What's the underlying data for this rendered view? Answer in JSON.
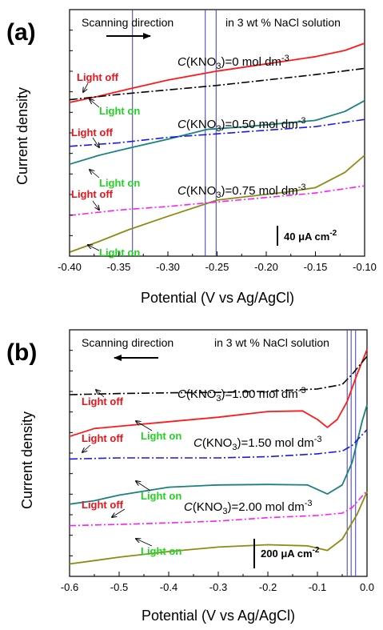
{
  "panels": [
    {
      "label": "(a)",
      "direction_text": "Scanning direction",
      "solution_text": "in 3 wt % NaCl solution",
      "arrow": "right",
      "xlabel": "Potential (V vs Ag/AgCl)",
      "ylabel": "Current density",
      "scale_bar": {
        "prefix": "40 ",
        "unit": "μA cm",
        "exp": "-2"
      },
      "x_ticks": [
        "-0.40",
        "-0.35",
        "-0.30",
        "-0.25",
        "-0.20",
        "-0.15",
        "-0.10"
      ],
      "curve_labels": [
        {
          "pre": "C",
          "mid": "(KNO",
          "sub": "3",
          "post": ")=0 mol dm",
          "sup": "-3"
        },
        {
          "pre": "C",
          "mid": "(KNO",
          "sub": "3",
          "post": ")=0.50 mol dm",
          "sup": "-3"
        },
        {
          "pre": "C",
          "mid": "(KNO",
          "sub": "3",
          "post": ")=0.75 mol dm",
          "sup": "-3"
        }
      ],
      "light_off": [
        "Light off",
        "Light off",
        "Light off"
      ],
      "light_on": [
        "Light on",
        "Light on",
        "Light on"
      ]
    },
    {
      "label": "(b)",
      "direction_text": "Scanning direction",
      "solution_text": "in 3 wt % NaCl solution",
      "arrow": "left",
      "xlabel": "Potential (V vs Ag/AgCl)",
      "ylabel": "Current density",
      "scale_bar": {
        "prefix": "200 ",
        "unit": "μA cm",
        "exp": "-2"
      },
      "x_ticks": [
        "-0.6",
        "-0.5",
        "-0.4",
        "-0.3",
        "-0.2",
        "-0.1",
        "0.0"
      ],
      "curve_labels": [
        {
          "pre": "C",
          "mid": "(KNO",
          "sub": "3",
          "post": ")=1.00 mol dm",
          "sup": "-3"
        },
        {
          "pre": "C",
          "mid": "(KNO",
          "sub": "3",
          "post": ")=1.50 mol dm",
          "sup": "-3"
        },
        {
          "pre": "C",
          "mid": "(KNO",
          "sub": "3",
          "post": ")=2.00 mol dm",
          "sup": "-3"
        }
      ],
      "light_off": [
        "Light off",
        "Light off",
        "Light off"
      ],
      "light_on": [
        "Light on",
        "Light on",
        "Light on"
      ]
    }
  ],
  "colors": {
    "light_off_text": "#e8141b",
    "light_on_text": "#21d321",
    "vline": "#3a3ab0",
    "a_on_0": "#ff1a1a",
    "a_off_0": "#000000",
    "a_on_1": "#1a8080",
    "a_off_1": "#1a1ae6",
    "a_on_2": "#8c8c14",
    "a_off_2": "#ff1aff",
    "b_on_0": "#ff1a1a",
    "b_off_0": "#000000",
    "b_on_1": "#1a8080",
    "b_off_1": "#1a1ae6",
    "b_on_2": "#8c8c14",
    "b_off_2": "#ff1aff"
  },
  "chart_data": [
    {
      "type": "line",
      "title": "(a)",
      "xlabel": "Potential (V vs Ag/AgCl)",
      "ylabel": "Current density",
      "xlim": [
        -0.4,
        -0.1
      ],
      "y_scale_bar": "40 μA cm-2",
      "series": [
        {
          "name": "C(KNO3)=0 mol dm-3 Light on",
          "x": [
            -0.4,
            -0.37,
            -0.34,
            -0.3,
            -0.25,
            -0.2,
            -0.15,
            -0.12,
            -0.1
          ],
          "y": [
            -8,
            -1,
            7,
            17,
            27,
            35,
            43,
            50,
            58
          ]
        },
        {
          "name": "C(KNO3)=0 mol dm-3 Light off",
          "x": [
            -0.4,
            -0.35,
            -0.3,
            -0.25,
            -0.2,
            -0.15,
            -0.1
          ],
          "y": [
            -5,
            1,
            6,
            11,
            17,
            23,
            30
          ]
        },
        {
          "name": "C(KNO3)=0.50 mol dm-3 Light on",
          "x": [
            -0.4,
            -0.37,
            -0.34,
            -0.3,
            -0.26,
            -0.22,
            -0.18,
            -0.15,
            -0.12,
            -0.1
          ],
          "y": [
            -77,
            -67,
            -59,
            -49,
            -38,
            -35,
            -31,
            -28,
            -18,
            -6
          ]
        },
        {
          "name": "C(KNO3)=0.50 mol dm-3 Light off",
          "x": [
            -0.4,
            -0.35,
            -0.3,
            -0.25,
            -0.2,
            -0.15,
            -0.1
          ],
          "y": [
            -57,
            -53,
            -47,
            -43,
            -39,
            -35,
            -27
          ]
        },
        {
          "name": "C(KNO3)=0.75 mol dm-3 Light on",
          "x": [
            -0.4,
            -0.37,
            -0.34,
            -0.3,
            -0.25,
            -0.22,
            -0.18,
            -0.15,
            -0.12,
            -0.1
          ],
          "y": [
            -175,
            -163,
            -150,
            -135,
            -117,
            -113,
            -108,
            -103,
            -86,
            -67
          ]
        },
        {
          "name": "C(KNO3)=0.75 mol dm-3 Light off",
          "x": [
            -0.4,
            -0.35,
            -0.3,
            -0.25,
            -0.2,
            -0.15,
            -0.1
          ],
          "y": [
            -134,
            -128,
            -124,
            -119,
            -114,
            -109,
            -101
          ]
        }
      ],
      "intersections_x": [
        -0.336,
        -0.262,
        -0.251
      ]
    },
    {
      "type": "line",
      "title": "(b)",
      "xlabel": "Potential (V vs Ag/AgCl)",
      "ylabel": "Current density",
      "xlim": [
        -0.6,
        0.0
      ],
      "y_scale_bar": "200 μA cm-2",
      "series": [
        {
          "name": "C(KNO3)=1.00 mol dm-3 Light on",
          "x": [
            -0.6,
            -0.55,
            -0.5,
            -0.4,
            -0.3,
            -0.2,
            -0.13,
            -0.1,
            -0.08,
            -0.06,
            -0.04,
            -0.02,
            0.0
          ],
          "y": [
            -185,
            -150,
            -140,
            -120,
            -100,
            -75,
            -72,
            -110,
            -145,
            -110,
            -30,
            90,
            200
          ]
        },
        {
          "name": "C(KNO3)=1.00 mol dm-3 Light off",
          "x": [
            -0.6,
            -0.5,
            -0.4,
            -0.3,
            -0.2,
            -0.1,
            -0.05,
            -0.03,
            0.0
          ],
          "y": [
            0,
            5,
            8,
            10,
            15,
            25,
            45,
            90,
            170
          ]
        },
        {
          "name": "C(KNO3)=1.50 mol dm-3 Light on",
          "x": [
            -0.6,
            -0.55,
            -0.5,
            -0.4,
            -0.3,
            -0.2,
            -0.12,
            -0.08,
            -0.05,
            -0.03,
            -0.01,
            0.0
          ],
          "y": [
            -485,
            -470,
            -445,
            -410,
            -400,
            -398,
            -400,
            -440,
            -400,
            -300,
            -120,
            -45
          ]
        },
        {
          "name": "C(KNO3)=1.50 mol dm-3 Light off",
          "x": [
            -0.6,
            -0.5,
            -0.4,
            -0.3,
            -0.2,
            -0.1,
            -0.05,
            -0.03,
            0.0
          ],
          "y": [
            -285,
            -280,
            -280,
            -280,
            -275,
            -262,
            -250,
            -225,
            -155
          ]
        },
        {
          "name": "C(KNO3)=2.00 mol dm-3 Light on",
          "x": [
            -0.6,
            -0.55,
            -0.5,
            -0.4,
            -0.3,
            -0.2,
            -0.12,
            -0.08,
            -0.05,
            -0.02,
            0.0
          ],
          "y": [
            -750,
            -735,
            -720,
            -695,
            -675,
            -665,
            -670,
            -690,
            -640,
            -530,
            -430
          ]
        },
        {
          "name": "C(KNO3)=2.00 mol dm-3 Light off",
          "x": [
            -0.6,
            -0.5,
            -0.4,
            -0.3,
            -0.2,
            -0.1,
            -0.05,
            -0.03,
            0.0
          ],
          "y": [
            -580,
            -575,
            -568,
            -560,
            -545,
            -535,
            -525,
            -500,
            -425
          ]
        }
      ],
      "intersections_x": [
        -0.04,
        -0.032,
        -0.023
      ]
    }
  ]
}
